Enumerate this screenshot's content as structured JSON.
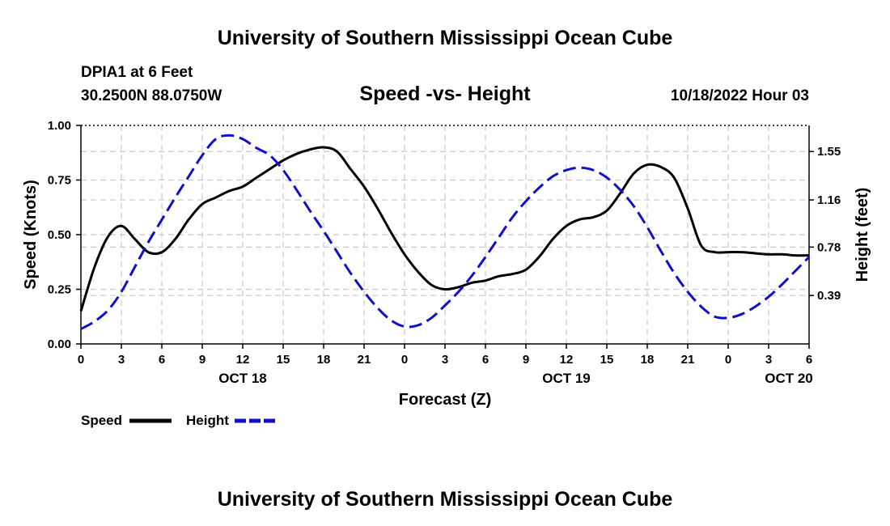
{
  "header": {
    "title": "University of Southern Mississippi Ocean Cube",
    "station": "DPIA1 at 6 Feet",
    "coords": "30.2500N  88.0750W",
    "datetime": "10/18/2022 Hour 03",
    "footer_title": "University of Southern Mississippi Ocean Cube"
  },
  "colors": {
    "speed": "#000000",
    "height": "#1010c8"
  },
  "chart_data": {
    "type": "line",
    "title": "Speed -vs- Height",
    "xlabel": "Forecast (Z)",
    "ylabel": "Speed (Knots)",
    "y2label": "Height (feet)",
    "xlim": [
      0,
      54
    ],
    "ylim": [
      0,
      1.0
    ],
    "y2lim": [
      0.0,
      1.76
    ],
    "x_tick_values": [
      0,
      3,
      6,
      9,
      12,
      15,
      18,
      21,
      24,
      27,
      30,
      33,
      36,
      39,
      42,
      45,
      48,
      51,
      54
    ],
    "x_tick_labels": [
      "0",
      "3",
      "6",
      "9",
      "12",
      "15",
      "18",
      "21",
      "0",
      "3",
      "6",
      "9",
      "12",
      "15",
      "18",
      "21",
      "0",
      "3",
      "6"
    ],
    "date_labels": [
      {
        "hour": 12,
        "label": "OCT 18"
      },
      {
        "hour": 36,
        "label": "OCT 19"
      },
      {
        "hour": 52.5,
        "label": "OCT 20"
      }
    ],
    "y_ticks": [
      "0.00",
      "0.25",
      "0.50",
      "0.75",
      "1.00"
    ],
    "y_tick_values": [
      0,
      0.25,
      0.5,
      0.75,
      1.0
    ],
    "y2_ticks": [
      "0.39",
      "0.78",
      "1.16",
      "1.55"
    ],
    "y2_tick_values": [
      0.39,
      0.78,
      1.16,
      1.55
    ],
    "series": [
      {
        "name": "Speed",
        "axis": "left",
        "x": [
          0,
          1,
          2,
          3,
          4,
          5,
          6,
          7,
          8,
          9,
          10,
          11,
          12,
          13,
          14,
          15,
          16,
          17,
          18,
          19,
          20,
          21,
          22,
          23,
          24,
          25,
          26,
          27,
          28,
          29,
          30,
          31,
          32,
          33,
          34,
          35,
          36,
          37,
          38,
          39,
          40,
          41,
          42,
          43,
          44,
          45,
          46,
          47,
          48,
          49,
          50,
          51,
          52,
          53,
          54
        ],
        "values": [
          0.15,
          0.35,
          0.49,
          0.54,
          0.48,
          0.42,
          0.42,
          0.48,
          0.57,
          0.64,
          0.67,
          0.7,
          0.72,
          0.76,
          0.8,
          0.84,
          0.87,
          0.89,
          0.9,
          0.88,
          0.8,
          0.72,
          0.62,
          0.51,
          0.41,
          0.33,
          0.27,
          0.25,
          0.26,
          0.28,
          0.29,
          0.31,
          0.32,
          0.34,
          0.4,
          0.48,
          0.54,
          0.57,
          0.58,
          0.61,
          0.69,
          0.78,
          0.82,
          0.81,
          0.76,
          0.62,
          0.45,
          0.42,
          0.42,
          0.42,
          0.415,
          0.41,
          0.41,
          0.405,
          0.405
        ]
      },
      {
        "name": "Height",
        "axis": "right",
        "x": [
          0,
          1,
          2,
          3,
          4,
          5,
          6,
          7,
          8,
          9,
          10,
          11,
          12,
          13,
          14,
          15,
          16,
          17,
          18,
          19,
          20,
          21,
          22,
          23,
          24,
          25,
          26,
          27,
          28,
          29,
          30,
          31,
          32,
          33,
          34,
          35,
          36,
          37,
          38,
          39,
          40,
          41,
          42,
          43,
          44,
          45,
          46,
          47,
          48,
          49,
          50,
          51,
          52,
          53,
          54
        ],
        "values": [
          0.12,
          0.18,
          0.27,
          0.42,
          0.62,
          0.82,
          1.0,
          1.18,
          1.35,
          1.52,
          1.65,
          1.68,
          1.65,
          1.58,
          1.52,
          1.4,
          1.24,
          1.07,
          0.91,
          0.74,
          0.57,
          0.42,
          0.29,
          0.19,
          0.14,
          0.15,
          0.21,
          0.31,
          0.42,
          0.55,
          0.7,
          0.86,
          1.02,
          1.15,
          1.26,
          1.35,
          1.4,
          1.42,
          1.4,
          1.34,
          1.24,
          1.11,
          0.94,
          0.75,
          0.57,
          0.42,
          0.3,
          0.22,
          0.21,
          0.24,
          0.3,
          0.38,
          0.48,
          0.59,
          0.7
        ]
      }
    ],
    "legend": [
      {
        "label": "Speed",
        "style": "solid"
      },
      {
        "label": "Height",
        "style": "dashed"
      }
    ]
  }
}
